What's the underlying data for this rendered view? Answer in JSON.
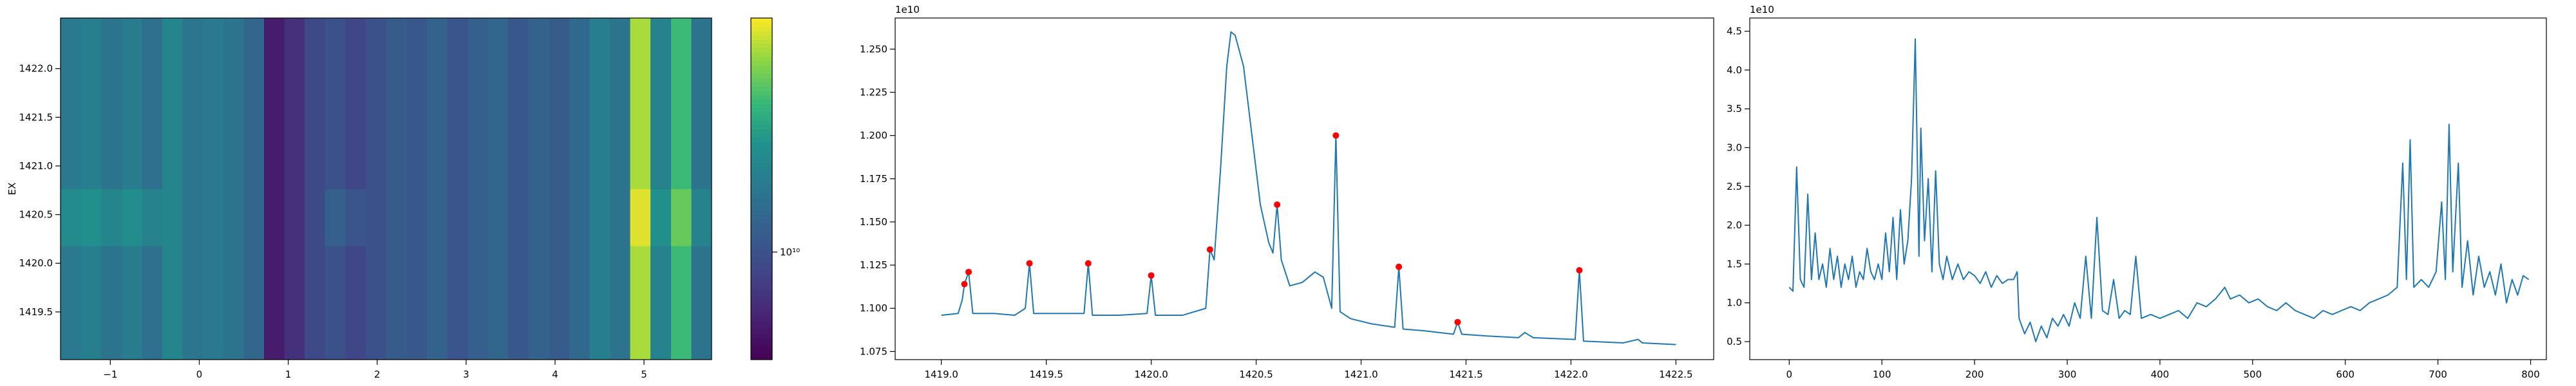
{
  "chart_data": [
    {
      "type": "heatmap",
      "ylabel": "EX",
      "colormap": "viridis",
      "log_color": true,
      "xlim": [
        -1.56,
        5.76
      ],
      "ylim": [
        1419.01,
        1422.52
      ],
      "xticks": [
        {
          "value": -1,
          "label": "−1"
        },
        0,
        1,
        2,
        3,
        4,
        5
      ],
      "yticks": [
        1419.5,
        {
          "value": 1420,
          "label": "1420.0"
        },
        1420.5,
        {
          "value": 1421,
          "label": "1421.0"
        },
        1421.5,
        {
          "value": 1422,
          "label": "1422.0"
        }
      ],
      "clim": [
        8300000000.0,
        15000000000.0
      ],
      "cticks": [
        {
          "value": 10000000000.0,
          "label": "10¹⁰"
        }
      ],
      "z": [
        [
          11200000000.0,
          11400000000.0,
          11000000000.0,
          11300000000.0,
          10900000000.0,
          11600000000.0,
          11100000000.0,
          11200000000.0,
          11000000000.0,
          10600000000.0,
          8800000000.0,
          9200000000.0,
          9800000000.0,
          10000000000.0,
          9700000000.0,
          10000000000.0,
          10300000000.0,
          10200000000.0,
          10500000000.0,
          10100000000.0,
          10400000000.0,
          10600000000.0,
          10200000000.0,
          10500000000.0,
          10300000000.0,
          10700000000.0,
          11400000000.0,
          11000000000.0,
          14200000000.0,
          11500000000.0,
          13000000000.0,
          11000000000.0
        ],
        [
          11200000000.0,
          11400000000.0,
          11000000000.0,
          11300000000.0,
          10900000000.0,
          11600000000.0,
          11100000000.0,
          11200000000.0,
          11000000000.0,
          10600000000.0,
          8800000000.0,
          9200000000.0,
          9800000000.0,
          10000000000.0,
          9700000000.0,
          10000000000.0,
          10300000000.0,
          10200000000.0,
          10500000000.0,
          10100000000.0,
          10400000000.0,
          10600000000.0,
          10200000000.0,
          10500000000.0,
          10300000000.0,
          10700000000.0,
          11400000000.0,
          11000000000.0,
          14200000000.0,
          11500000000.0,
          13000000000.0,
          11000000000.0
        ],
        [
          11800000000.0,
          12000000000.0,
          11600000000.0,
          11900000000.0,
          11500000000.0,
          11600000000.0,
          11100000000.0,
          11200000000.0,
          11000000000.0,
          10600000000.0,
          8800000000.0,
          9200000000.0,
          9800000000.0,
          10400000000.0,
          10100000000.0,
          10000000000.0,
          10300000000.0,
          10200000000.0,
          10500000000.0,
          10100000000.0,
          10400000000.0,
          10600000000.0,
          10200000000.0,
          10500000000.0,
          10300000000.0,
          10700000000.0,
          11400000000.0,
          11000000000.0,
          14700000000.0,
          12000000000.0,
          13500000000.0,
          11500000000.0
        ],
        [
          11200000000.0,
          11400000000.0,
          11000000000.0,
          11300000000.0,
          10900000000.0,
          11600000000.0,
          11100000000.0,
          11200000000.0,
          11000000000.0,
          10600000000.0,
          8800000000.0,
          9200000000.0,
          9800000000.0,
          10000000000.0,
          9700000000.0,
          10000000000.0,
          10300000000.0,
          10200000000.0,
          10500000000.0,
          10100000000.0,
          10400000000.0,
          10600000000.0,
          10200000000.0,
          10500000000.0,
          10300000000.0,
          10700000000.0,
          11400000000.0,
          11000000000.0,
          14200000000.0,
          11500000000.0,
          13000000000.0,
          11000000000.0
        ],
        [
          11200000000.0,
          11400000000.0,
          11000000000.0,
          11300000000.0,
          10900000000.0,
          11600000000.0,
          11100000000.0,
          11200000000.0,
          11000000000.0,
          10600000000.0,
          8800000000.0,
          9200000000.0,
          9800000000.0,
          10000000000.0,
          9700000000.0,
          10000000000.0,
          10300000000.0,
          10200000000.0,
          10500000000.0,
          10100000000.0,
          10400000000.0,
          10600000000.0,
          10200000000.0,
          10500000000.0,
          10300000000.0,
          10700000000.0,
          11400000000.0,
          11000000000.0,
          14200000000.0,
          11500000000.0,
          13000000000.0,
          11000000000.0
        ],
        [
          11200000000.0,
          11400000000.0,
          11000000000.0,
          11300000000.0,
          10900000000.0,
          11600000000.0,
          11100000000.0,
          11200000000.0,
          11000000000.0,
          10600000000.0,
          8800000000.0,
          9200000000.0,
          9800000000.0,
          10000000000.0,
          9700000000.0,
          10000000000.0,
          10300000000.0,
          10200000000.0,
          10500000000.0,
          10100000000.0,
          10400000000.0,
          10600000000.0,
          10200000000.0,
          10500000000.0,
          10300000000.0,
          10700000000.0,
          11400000000.0,
          11000000000.0,
          14200000000.0,
          11500000000.0,
          13000000000.0,
          11000000000.0
        ]
      ]
    },
    {
      "type": "line",
      "offset_text": "1e10",
      "color": "#1f77b4",
      "xlim": [
        1418.78,
        1422.68
      ],
      "ylim": [
        1.0703,
        1.268
      ],
      "xticks": [
        {
          "value": 1419,
          "label": "1419.0"
        },
        1419.5,
        {
          "value": 1420,
          "label": "1420.0"
        },
        1420.5,
        {
          "value": 1421,
          "label": "1421.0"
        },
        1421.5,
        {
          "value": 1422,
          "label": "1422.0"
        },
        1422.5
      ],
      "yticks": [
        1.075,
        {
          "value": 1.1,
          "label": "1.100"
        },
        1.125,
        {
          "value": 1.15,
          "label": "1.150"
        },
        1.175,
        {
          "value": 1.2,
          "label": "1.200"
        },
        1.225,
        {
          "value": 1.25,
          "label": "1.250"
        }
      ],
      "x": [
        1419.0,
        1419.08,
        1419.1,
        1419.11,
        1419.13,
        1419.15,
        1419.25,
        1419.35,
        1419.4,
        1419.42,
        1419.44,
        1419.55,
        1419.68,
        1419.7,
        1419.72,
        1419.85,
        1419.98,
        1420.0,
        1420.02,
        1420.15,
        1420.26,
        1420.28,
        1420.3,
        1420.33,
        1420.36,
        1420.38,
        1420.4,
        1420.44,
        1420.48,
        1420.52,
        1420.56,
        1420.58,
        1420.6,
        1420.62,
        1420.66,
        1420.72,
        1420.78,
        1420.82,
        1420.86,
        1420.88,
        1420.9,
        1420.95,
        1421.05,
        1421.16,
        1421.18,
        1421.2,
        1421.3,
        1421.44,
        1421.46,
        1421.48,
        1421.6,
        1421.75,
        1421.78,
        1421.82,
        1422.02,
        1422.04,
        1422.06,
        1422.25,
        1422.32,
        1422.34,
        1422.5
      ],
      "values": [
        1.096,
        1.097,
        1.105,
        1.114,
        1.121,
        1.097,
        1.097,
        1.096,
        1.1,
        1.126,
        1.097,
        1.097,
        1.097,
        1.126,
        1.096,
        1.096,
        1.097,
        1.119,
        1.096,
        1.096,
        1.1,
        1.134,
        1.128,
        1.18,
        1.24,
        1.26,
        1.258,
        1.24,
        1.2,
        1.16,
        1.138,
        1.132,
        1.16,
        1.128,
        1.113,
        1.115,
        1.121,
        1.118,
        1.1,
        1.2,
        1.098,
        1.094,
        1.091,
        1.089,
        1.124,
        1.088,
        1.087,
        1.085,
        1.092,
        1.085,
        1.084,
        1.083,
        1.086,
        1.083,
        1.082,
        1.122,
        1.081,
        1.08,
        1.082,
        1.08,
        1.079
      ],
      "peaks": {
        "color": "#ff0000",
        "x": [
          1419.11,
          1419.13,
          1419.42,
          1419.7,
          1420.0,
          1420.28,
          1420.6,
          1420.88,
          1421.18,
          1421.46,
          1422.04
        ],
        "values": [
          1.114,
          1.121,
          1.126,
          1.126,
          1.119,
          1.134,
          1.16,
          1.2,
          1.124,
          1.092,
          1.122
        ]
      }
    },
    {
      "type": "line",
      "offset_text": "1e10",
      "color": "#1f77b4",
      "xlim": [
        -42.6,
        817
      ],
      "ylim": [
        0.268,
        4.67
      ],
      "xticks": [
        0,
        100,
        200,
        300,
        400,
        500,
        600,
        700,
        800
      ],
      "yticks": [
        0.5,
        {
          "value": 1,
          "label": "1.0"
        },
        1.5,
        {
          "value": 2,
          "label": "2.0"
        },
        2.5,
        {
          "value": 3,
          "label": "3.0"
        },
        3.5,
        {
          "value": 4,
          "label": "4.0"
        },
        4.5
      ],
      "x": [
        0,
        4,
        8,
        12,
        16,
        20,
        24,
        28,
        32,
        36,
        40,
        44,
        48,
        52,
        56,
        60,
        64,
        68,
        72,
        76,
        80,
        84,
        88,
        92,
        96,
        100,
        104,
        108,
        112,
        116,
        120,
        124,
        128,
        132,
        136,
        140,
        142,
        146,
        150,
        154,
        158,
        162,
        166,
        170,
        176,
        182,
        188,
        194,
        200,
        206,
        212,
        218,
        224,
        230,
        236,
        242,
        246,
        248,
        254,
        260,
        266,
        272,
        278,
        284,
        290,
        296,
        302,
        308,
        314,
        320,
        326,
        332,
        338,
        344,
        350,
        356,
        362,
        368,
        374,
        380,
        390,
        400,
        410,
        420,
        430,
        440,
        450,
        460,
        470,
        476,
        486,
        496,
        506,
        516,
        526,
        536,
        546,
        556,
        566,
        576,
        586,
        596,
        606,
        616,
        626,
        636,
        646,
        656,
        662,
        666,
        670,
        674,
        682,
        690,
        698,
        704,
        708,
        712,
        716,
        722,
        726,
        732,
        738,
        744,
        750,
        756,
        762,
        768,
        774,
        780,
        786,
        792,
        798
      ],
      "values": [
        1.2,
        1.15,
        2.75,
        1.3,
        1.2,
        2.4,
        1.3,
        1.9,
        1.3,
        1.5,
        1.2,
        1.7,
        1.3,
        1.6,
        1.2,
        1.5,
        1.3,
        1.6,
        1.2,
        1.4,
        1.3,
        1.7,
        1.4,
        1.3,
        1.5,
        1.3,
        1.9,
        1.4,
        2.1,
        1.3,
        2.2,
        1.5,
        1.8,
        2.6,
        4.4,
        1.6,
        3.25,
        1.8,
        2.6,
        1.4,
        2.7,
        1.5,
        1.3,
        1.6,
        1.3,
        1.5,
        1.3,
        1.4,
        1.35,
        1.25,
        1.4,
        1.2,
        1.35,
        1.25,
        1.3,
        1.3,
        1.4,
        0.8,
        0.6,
        0.75,
        0.5,
        0.7,
        0.55,
        0.8,
        0.7,
        0.85,
        0.7,
        1.0,
        0.8,
        1.6,
        0.8,
        2.1,
        0.9,
        0.85,
        1.3,
        0.8,
        0.9,
        0.85,
        1.6,
        0.8,
        0.85,
        0.8,
        0.85,
        0.9,
        0.8,
        1.0,
        0.95,
        1.05,
        1.2,
        1.05,
        1.1,
        1.0,
        1.05,
        0.95,
        0.9,
        1.0,
        0.9,
        0.85,
        0.8,
        0.9,
        0.85,
        0.9,
        0.95,
        0.9,
        1.0,
        1.05,
        1.1,
        1.2,
        2.8,
        1.3,
        3.1,
        1.2,
        1.3,
        1.2,
        1.4,
        2.3,
        1.3,
        3.3,
        1.4,
        2.8,
        1.2,
        1.8,
        1.1,
        1.6,
        1.2,
        1.4,
        1.1,
        1.5,
        1.0,
        1.3,
        1.1,
        1.35,
        1.3
      ]
    }
  ]
}
